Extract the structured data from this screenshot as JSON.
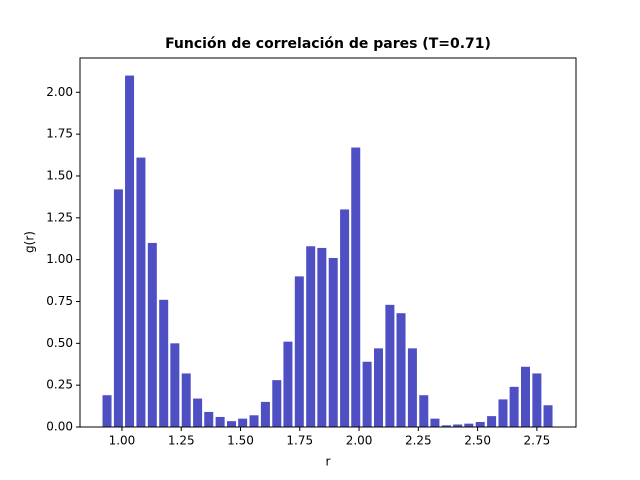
{
  "chart_data": {
    "type": "bar",
    "title": "Función de correlación de pares (T=0.71)",
    "xlabel": "r",
    "ylabel": "g(r)",
    "x": [
      0.937,
      0.985,
      1.032,
      1.08,
      1.128,
      1.176,
      1.223,
      1.271,
      1.319,
      1.366,
      1.414,
      1.462,
      1.509,
      1.557,
      1.605,
      1.653,
      1.7,
      1.748,
      1.796,
      1.843,
      1.891,
      1.939,
      1.986,
      2.034,
      2.082,
      2.13,
      2.177,
      2.225,
      2.273,
      2.32,
      2.368,
      2.416,
      2.463,
      2.511,
      2.559,
      2.607,
      2.654,
      2.702,
      2.75,
      2.797
    ],
    "values": [
      0.19,
      1.42,
      2.1,
      1.61,
      1.1,
      0.76,
      0.5,
      0.32,
      0.17,
      0.09,
      0.06,
      0.035,
      0.05,
      0.07,
      0.15,
      0.28,
      0.51,
      0.9,
      1.08,
      1.07,
      1.01,
      1.3,
      1.67,
      0.39,
      0.47,
      0.73,
      0.68,
      0.47,
      0.19,
      0.05,
      0.01,
      0.015,
      0.02,
      0.03,
      0.065,
      0.165,
      0.24,
      0.36,
      0.32,
      0.13
    ],
    "bar_width": 0.038,
    "color": "#4f4fc4",
    "xlim": [
      0.823,
      2.915
    ],
    "ylim": [
      0,
      2.205
    ],
    "xticks": [
      {
        "value": 1.0,
        "label": "1.00"
      },
      {
        "value": 1.25,
        "label": "1.25"
      },
      {
        "value": 1.5,
        "label": "1.50"
      },
      {
        "value": 1.75,
        "label": "1.75"
      },
      {
        "value": 2.0,
        "label": "2.00"
      },
      {
        "value": 2.25,
        "label": "2.25"
      },
      {
        "value": 2.5,
        "label": "2.50"
      },
      {
        "value": 2.75,
        "label": "2.75"
      }
    ],
    "yticks": [
      {
        "value": 0,
        "label": "0.00"
      },
      {
        "value": 0.25,
        "label": "0.25"
      },
      {
        "value": 0.5,
        "label": "0.50"
      },
      {
        "value": 0.75,
        "label": "0.75"
      },
      {
        "value": 1.0,
        "label": "1.00"
      },
      {
        "value": 1.25,
        "label": "1.25"
      },
      {
        "value": 1.5,
        "label": "1.50"
      },
      {
        "value": 1.75,
        "label": "1.75"
      },
      {
        "value": 2.0,
        "label": "2.00"
      }
    ],
    "grid": false
  }
}
